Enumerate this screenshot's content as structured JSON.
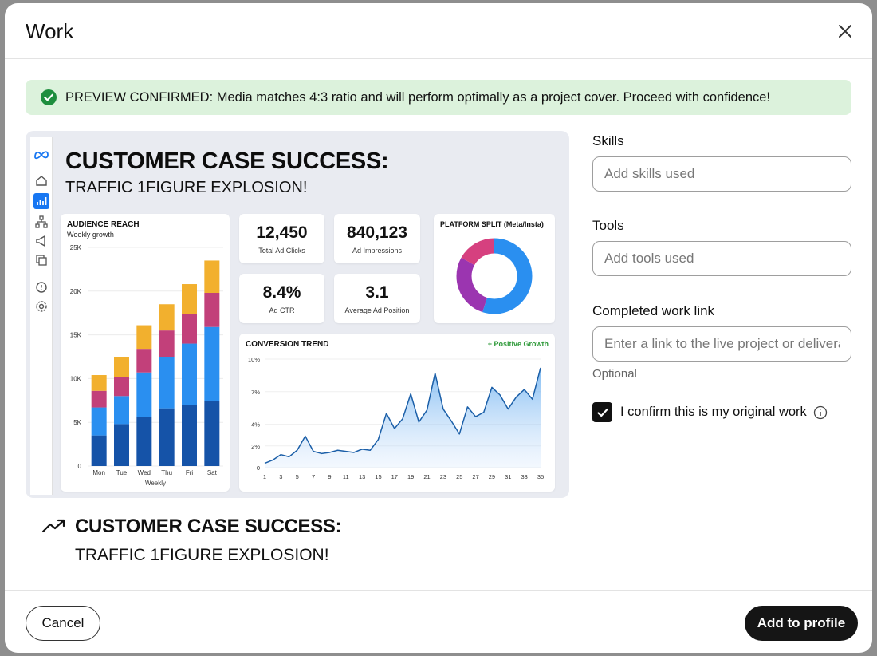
{
  "modal": {
    "title": "Work",
    "close_icon": "close-icon"
  },
  "banner": {
    "icon": "check-circle-icon",
    "text": "PREVIEW CONFIRMED: Media matches 4:3 ratio and will perform optimally as a project cover. Proceed with confidence!",
    "color": "#dcf2dc"
  },
  "preview": {
    "rail_icons": [
      "meta-logo-icon",
      "home-icon",
      "bar-chart-icon",
      "sitemap-icon",
      "megaphone-icon",
      "copy-icon",
      "alert-icon",
      "settings-icon"
    ],
    "title": "CUSTOMER CASE SUCCESS:",
    "subtitle": "TRAFFIC 1FIGURE EXPLOSION!",
    "kpis": [
      {
        "value": "12,450",
        "label": "Total Ad Clicks"
      },
      {
        "value": "840,123",
        "label": "Ad Impressions"
      },
      {
        "value": "8.4%",
        "label": "Ad CTR"
      },
      {
        "value": "3.1",
        "label": "Average Ad Position"
      }
    ],
    "accent": "#1877f2"
  },
  "chart_data": [
    {
      "type": "bar",
      "title": "AUDIENCE REACH",
      "subtitle": "Weekly growth",
      "xlabel": "Weekly",
      "ylabel": "",
      "categories": [
        "Mon",
        "Tue",
        "Wed",
        "Thu",
        "Fri",
        "Sat"
      ],
      "yticks": [
        "0",
        "5K",
        "10K",
        "15K",
        "20K",
        "25K"
      ],
      "ylim": [
        0,
        25000
      ],
      "stacked": true,
      "series": [
        {
          "values": [
            3500,
            4800,
            5600,
            6600,
            7000,
            7400
          ],
          "color": "#1553a8"
        },
        {
          "values": [
            3200,
            3200,
            5100,
            5900,
            7000,
            8500
          ],
          "color": "#2a8ff0"
        },
        {
          "values": [
            1900,
            2200,
            2700,
            3000,
            3400,
            3900
          ],
          "color": "#c2407a"
        },
        {
          "values": [
            1800,
            2300,
            2700,
            3000,
            3400,
            3700
          ],
          "color": "#f2b02e"
        }
      ]
    },
    {
      "type": "pie",
      "title": "PLATFORM SPLIT (Meta/Insta)",
      "slices": [
        {
          "value": 0.55,
          "color": "#2a8ff0"
        },
        {
          "value": 0.28,
          "color": "#9b35b0"
        },
        {
          "value": 0.17,
          "color": "#d6407f"
        }
      ]
    },
    {
      "type": "area",
      "title": "CONVERSION TREND",
      "annotation": "+ Positive Growth",
      "xticks": [
        "1",
        "3",
        "5",
        "7",
        "9",
        "11",
        "13",
        "15",
        "17",
        "19",
        "21",
        "23",
        "25",
        "27",
        "29",
        "31",
        "33",
        "35"
      ],
      "yticks": [
        "0",
        "2%",
        "4%",
        "7%",
        "10%"
      ],
      "xlim": [
        1,
        35
      ],
      "ylim": [
        0,
        10
      ],
      "x": [
        1,
        2,
        3,
        4,
        5,
        6,
        7,
        8,
        9,
        10,
        11,
        12,
        13,
        14,
        15,
        16,
        17,
        18,
        19,
        20,
        21,
        22,
        23,
        24,
        25,
        26,
        27,
        28,
        29,
        30,
        31,
        32,
        33,
        34,
        35
      ],
      "values": [
        0.4,
        0.7,
        1.2,
        1.0,
        1.6,
        2.9,
        1.5,
        1.3,
        1.4,
        1.6,
        1.5,
        1.4,
        1.7,
        1.6,
        2.6,
        5.0,
        3.6,
        4.5,
        6.8,
        4.2,
        5.3,
        8.7,
        5.4,
        4.3,
        3.1,
        5.6,
        4.7,
        5.1,
        7.4,
        6.7,
        5.4,
        6.5,
        7.2,
        6.3,
        9.2
      ]
    }
  ],
  "caption": {
    "icon": "trending-up-icon",
    "title": "CUSTOMER CASE SUCCESS:",
    "subtitle": "TRAFFIC 1FIGURE EXPLOSION!"
  },
  "form": {
    "skills": {
      "label": "Skills",
      "placeholder": "Add skills used"
    },
    "tools": {
      "label": "Tools",
      "placeholder": "Add tools used"
    },
    "link": {
      "label": "Completed work link",
      "placeholder": "Enter a link to the live project or deliverable",
      "helper": "Optional"
    },
    "confirm": {
      "label": "I confirm this is my original work",
      "checked": true,
      "info_icon": "info-icon"
    }
  },
  "footer": {
    "cancel_label": "Cancel",
    "submit_label": "Add to profile"
  }
}
